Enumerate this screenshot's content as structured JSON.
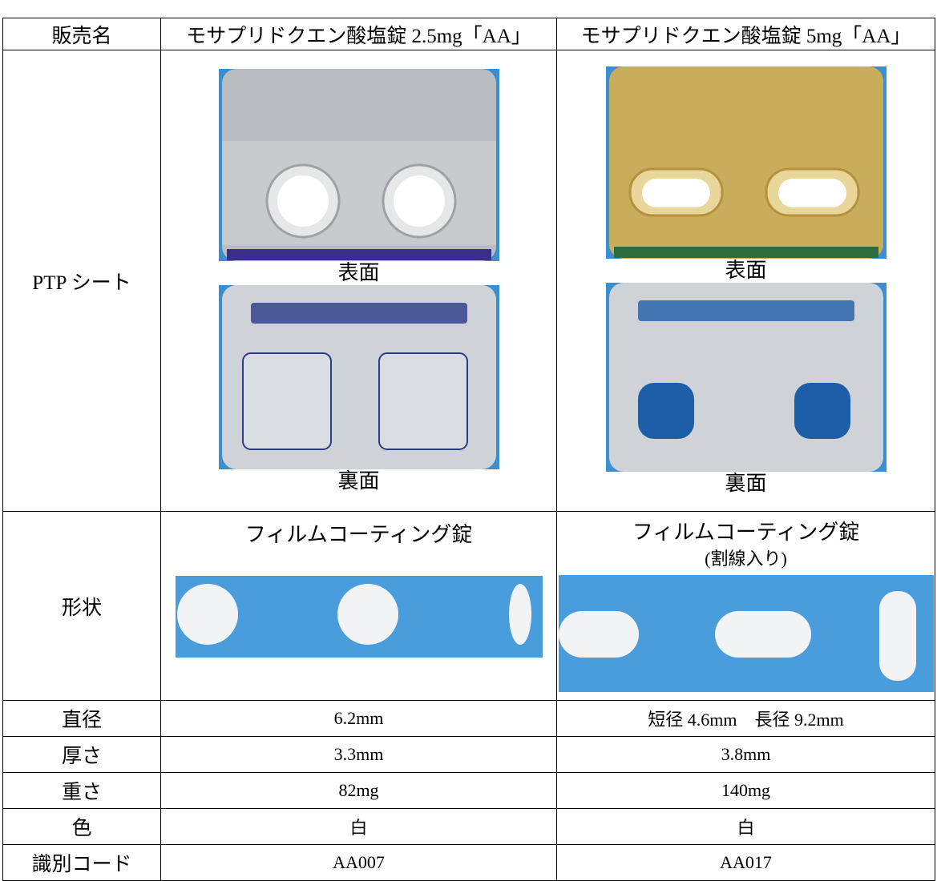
{
  "table": {
    "header": [
      "販売名",
      "モサプリドクエン酸塩錠 2.5mg「AA」",
      "モサプリドクエン酸塩錠 5mg「AA」"
    ],
    "ptp": {
      "label": "PTP シート",
      "front": [
        "表面",
        "表面"
      ],
      "back": [
        "裏面",
        "裏面"
      ]
    },
    "shape": {
      "label": "形状",
      "cells": [
        [
          "フィルムコーティング錠"
        ],
        [
          "フィルムコーティング錠",
          "(割線入り)"
        ]
      ]
    },
    "rows": [
      [
        "直径",
        "6.2mm",
        "短径 4.6mm　長径 9.2mm"
      ],
      [
        "厚さ",
        "3.3mm",
        "3.8mm"
      ],
      [
        "重さ",
        "82mg",
        "140mg"
      ],
      [
        "色",
        "白",
        "白"
      ],
      [
        "識別コード",
        "AA007",
        "AA017"
      ]
    ]
  }
}
